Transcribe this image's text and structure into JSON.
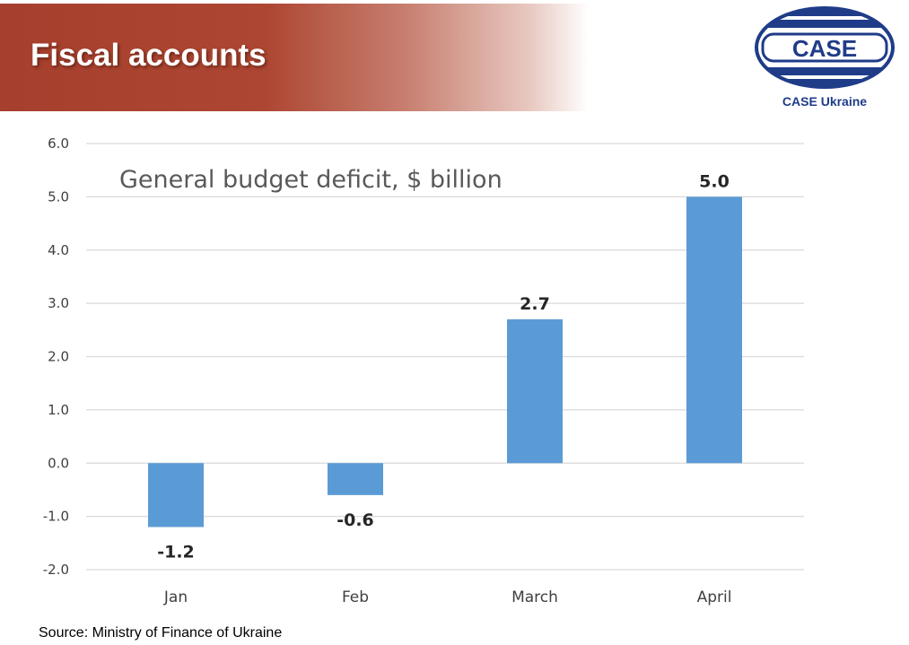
{
  "slide": {
    "title": "Fiscal accounts",
    "source": "Source: Ministry of Finance of Ukraine"
  },
  "logo": {
    "wordmark": "CASE",
    "caption": "CASE Ukraine",
    "color": "#1f3c88"
  },
  "colors": {
    "banner": "#ad4632",
    "bar": "#5b9bd5",
    "grid": "#d9d9d9"
  },
  "chart_data": {
    "type": "bar",
    "title": "General budget deficit, $ billion",
    "categories": [
      "Jan",
      "Feb",
      "March",
      "April"
    ],
    "values": [
      -1.2,
      -0.6,
      2.7,
      5.0
    ],
    "data_labels": [
      "-1.2",
      "-0.6",
      "2.7",
      "5.0"
    ],
    "ylim": [
      -2.0,
      6.0
    ],
    "yticks": [
      "6.0",
      "5.0",
      "4.0",
      "3.0",
      "2.0",
      "1.0",
      "0.0",
      "-1.0",
      "-2.0"
    ],
    "grid": true,
    "legend": "none"
  }
}
